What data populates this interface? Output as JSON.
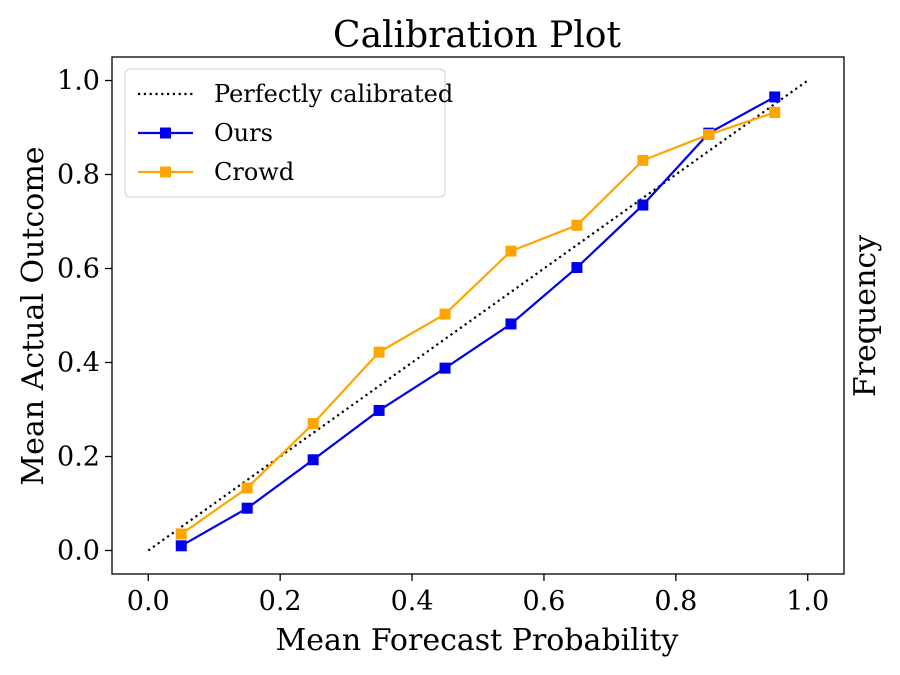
{
  "chart_data": {
    "type": "line",
    "title": "Calibration Plot",
    "xlabel": "Mean Forecast Probability",
    "ylabel": "Mean Actual Outcome",
    "y2label": "Frequency",
    "xlim": [
      -0.055,
      1.055
    ],
    "ylim": [
      -0.05,
      1.05
    ],
    "xticks": [
      0.0,
      0.2,
      0.4,
      0.6,
      0.8,
      1.0
    ],
    "yticks": [
      0.0,
      0.2,
      0.4,
      0.6,
      0.8,
      1.0
    ],
    "xtick_labels": [
      "0.0",
      "0.2",
      "0.4",
      "0.6",
      "0.8",
      "1.0"
    ],
    "ytick_labels": [
      "0.0",
      "0.2",
      "0.4",
      "0.6",
      "0.8",
      "1.0"
    ],
    "grid": false,
    "legend_position": "top-left",
    "reference": {
      "name": "Perfectly calibrated",
      "x": [
        0.0,
        1.0
      ],
      "y": [
        0.0,
        1.0
      ],
      "color": "#000000",
      "style": "dotted"
    },
    "series": [
      {
        "name": "Ours",
        "color": "#0000ee",
        "marker": "square",
        "x": [
          0.05,
          0.15,
          0.25,
          0.35,
          0.45,
          0.55,
          0.65,
          0.75,
          0.85,
          0.95
        ],
        "values": [
          0.01,
          0.09,
          0.193,
          0.298,
          0.388,
          0.482,
          0.602,
          0.735,
          0.888,
          0.965
        ]
      },
      {
        "name": "Crowd",
        "color": "#ffa500",
        "marker": "square",
        "x": [
          0.05,
          0.15,
          0.25,
          0.35,
          0.45,
          0.55,
          0.65,
          0.75,
          0.85,
          0.95
        ],
        "values": [
          0.035,
          0.133,
          0.27,
          0.422,
          0.503,
          0.637,
          0.692,
          0.83,
          0.885,
          0.932
        ]
      }
    ]
  }
}
